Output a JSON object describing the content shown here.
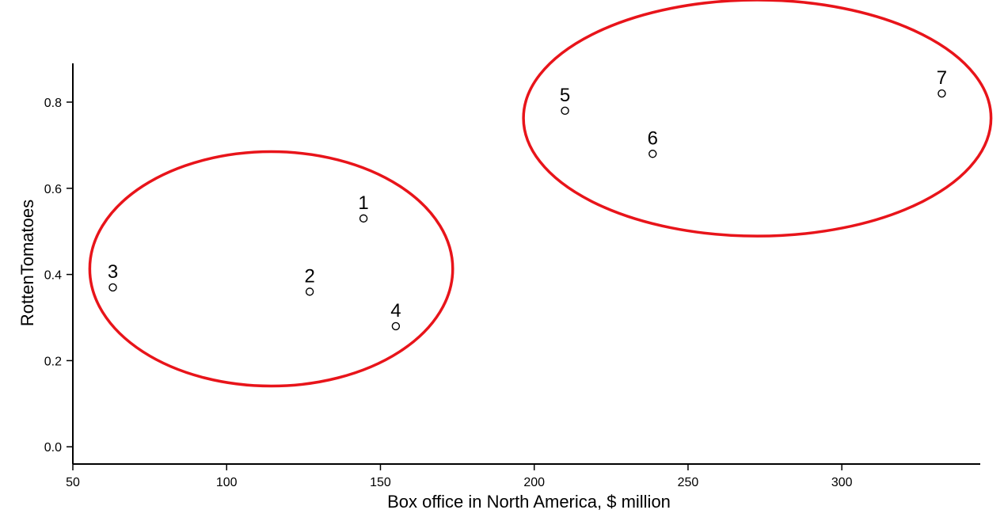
{
  "chart_data": {
    "type": "scatter",
    "title": "",
    "xlabel": "Box office in North America, $ million",
    "ylabel": "RottenTomatoes",
    "xlim": [
      50,
      345
    ],
    "ylim": [
      -0.04,
      0.89
    ],
    "xticks": [
      50,
      100,
      150,
      200,
      250,
      300
    ],
    "xtick_labels": [
      "50",
      "100",
      "150",
      "200",
      "250",
      "300"
    ],
    "yticks": [
      0.0,
      0.2,
      0.4,
      0.6,
      0.8
    ],
    "ytick_labels": [
      "0.0",
      "0.2",
      "0.4",
      "0.6",
      "0.8"
    ],
    "grid": false,
    "points": [
      {
        "label": "1",
        "x": 144.5,
        "y": 0.53
      },
      {
        "label": "2",
        "x": 127.0,
        "y": 0.36
      },
      {
        "label": "3",
        "x": 63.0,
        "y": 0.37
      },
      {
        "label": "4",
        "x": 155.0,
        "y": 0.28
      },
      {
        "label": "5",
        "x": 210.0,
        "y": 0.78
      },
      {
        "label": "6",
        "x": 238.5,
        "y": 0.68
      },
      {
        "label": "7",
        "x": 332.5,
        "y": 0.82
      }
    ],
    "clusters": [
      {
        "color": "#e8141a",
        "members": [
          "1",
          "2",
          "3",
          "4"
        ],
        "cx": 114.5,
        "cy": 0.413,
        "rx": 59,
        "ry": 0.272
      },
      {
        "color": "#e8141a",
        "members": [
          "5",
          "6",
          "7"
        ],
        "cx": 272.5,
        "cy": 0.763,
        "rx": 76,
        "ry": 0.274
      }
    ]
  }
}
